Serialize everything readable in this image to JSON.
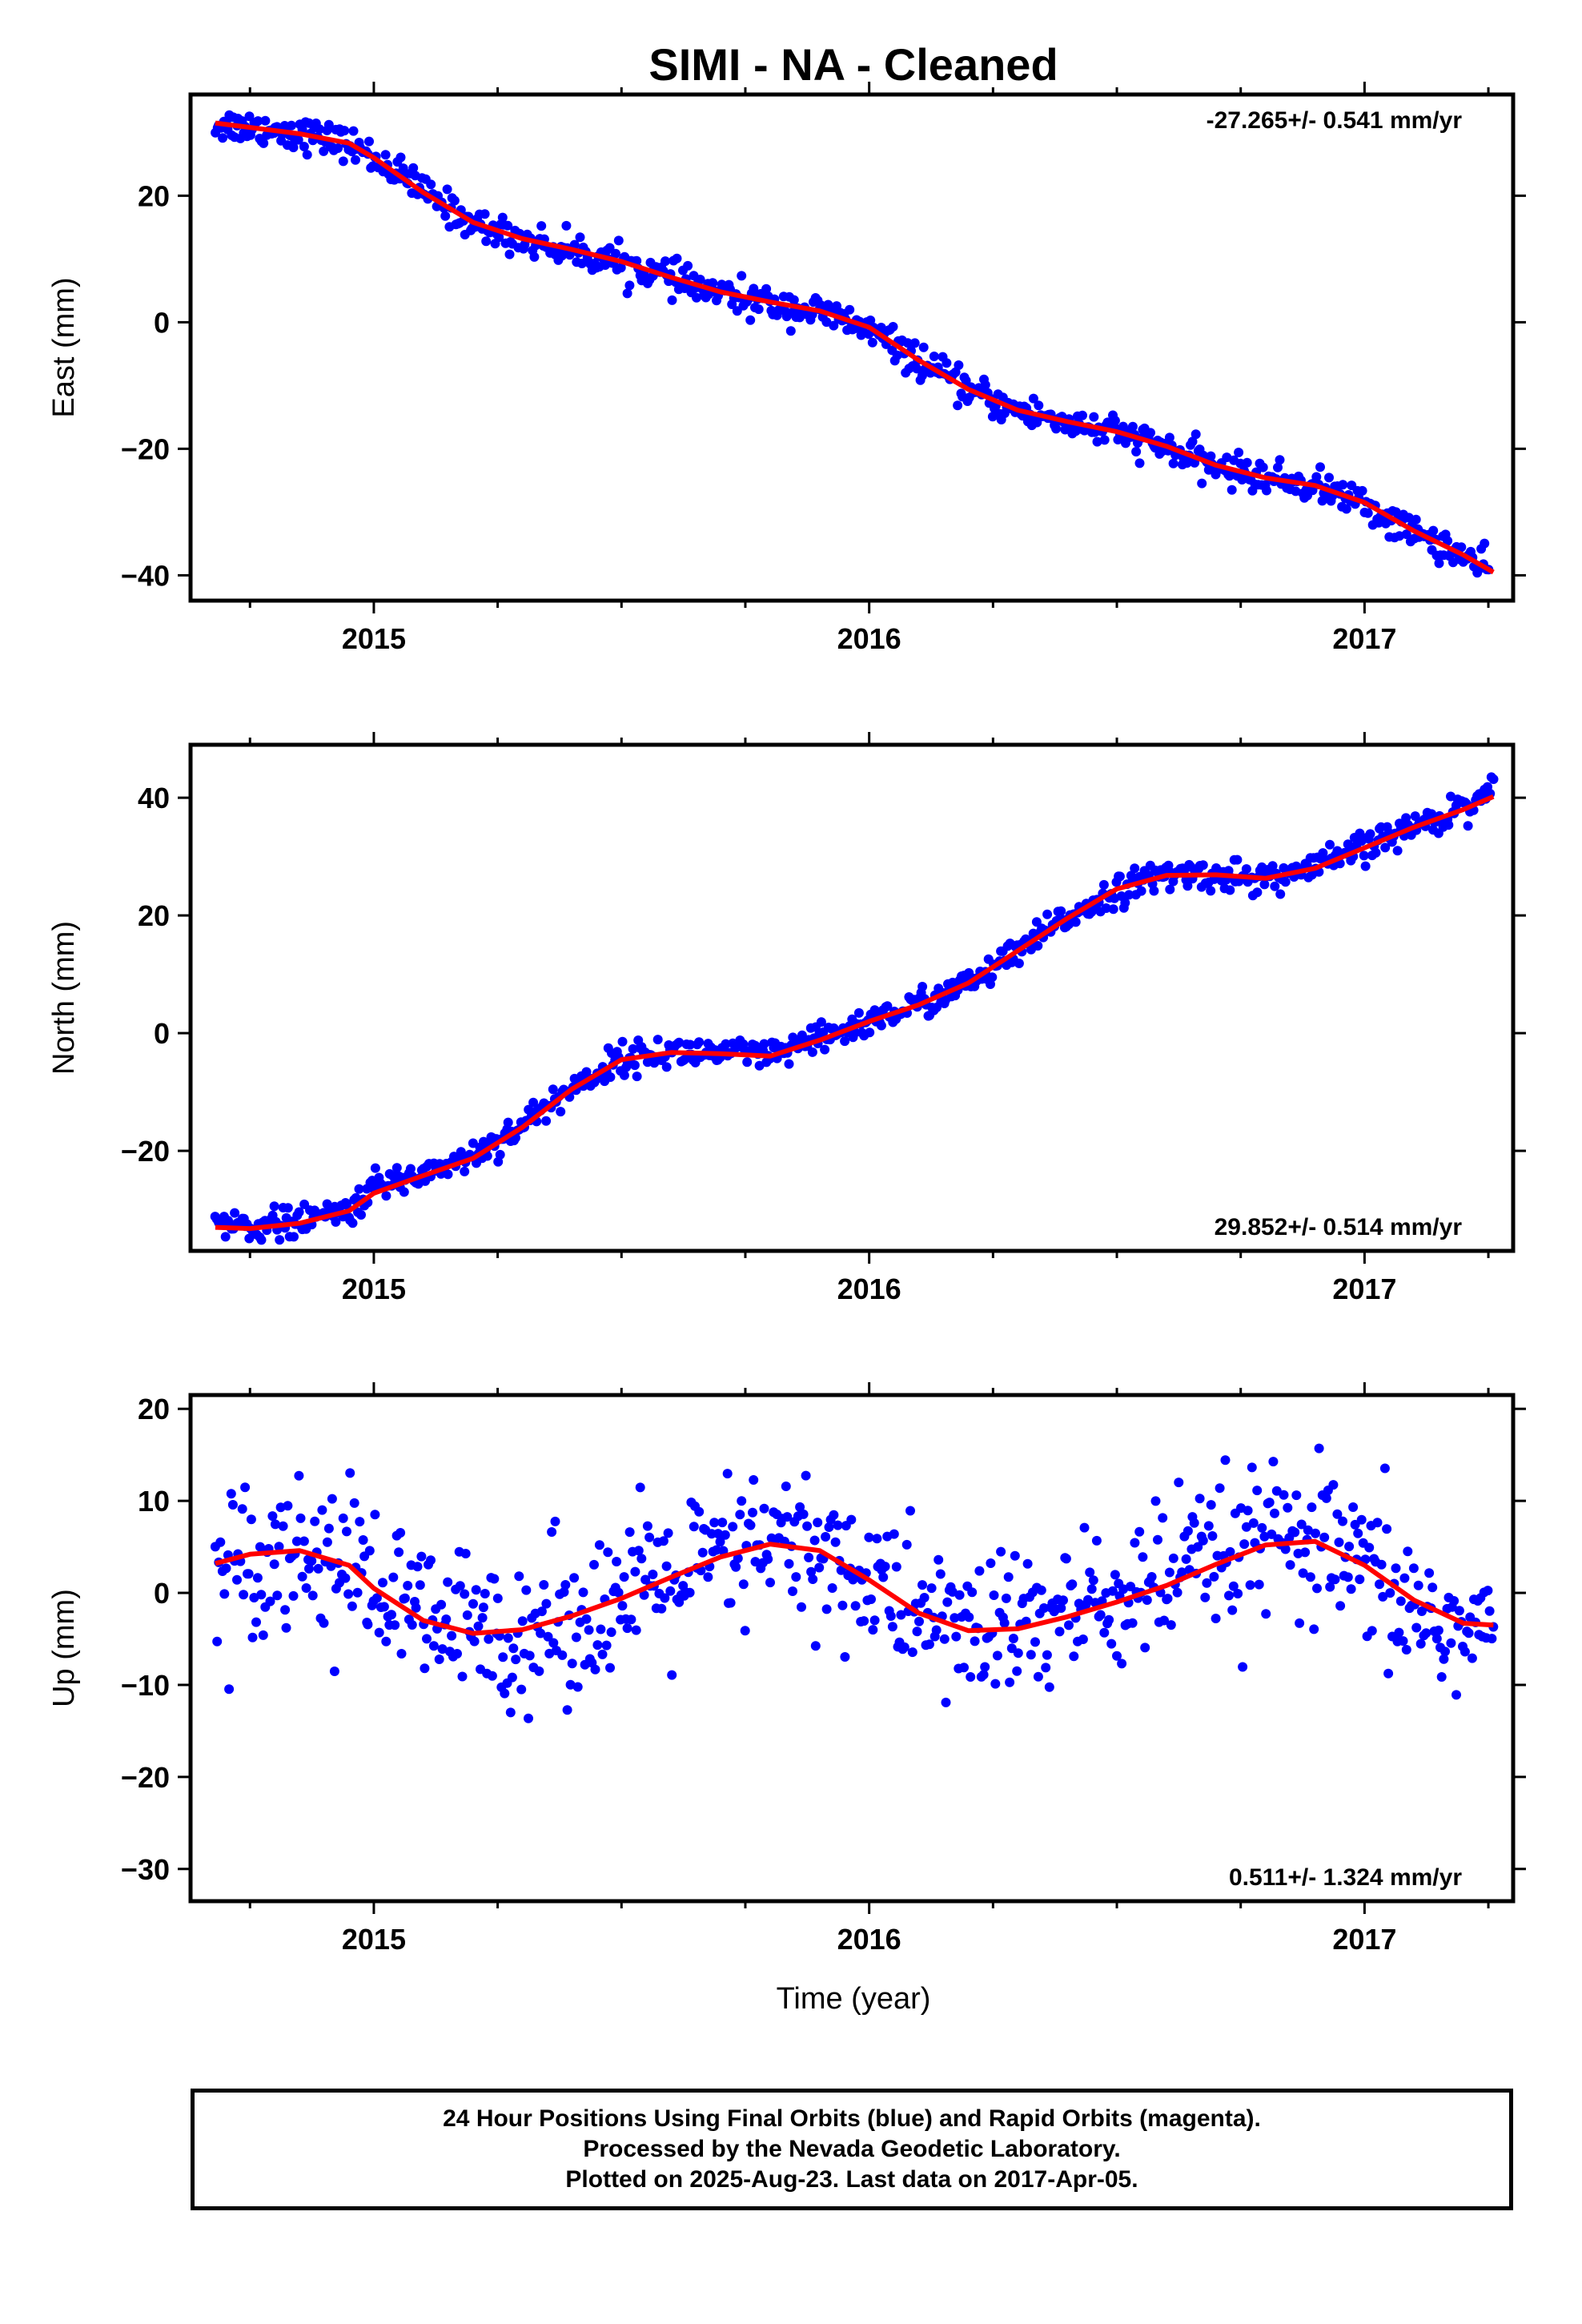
{
  "title": "SIMI  - NA - Cleaned",
  "xaxis": {
    "label": "Time (year)",
    "ticks": [
      2015,
      2016,
      2017
    ],
    "minor_ticks": [
      2014.75,
      2015.25,
      2015.5,
      2015.75,
      2016.25,
      2016.5,
      2016.75,
      2017.25
    ],
    "range": [
      2014.63,
      2017.3
    ]
  },
  "colors": {
    "data_points": "#0000ff",
    "model_line": "#ff0000",
    "frame": "#000000"
  },
  "footer": {
    "line1": "24 Hour Positions Using Final Orbits (blue) and Rapid Orbits (magenta).",
    "line2": "Processed by the Nevada Geodetic Laboratory.",
    "line3": "Plotted on 2025-Aug-23. Last data on 2017-Apr-05."
  },
  "chart_data": [
    {
      "type": "scatter",
      "ylabel": "East (mm)",
      "ylim": [
        -44,
        36
      ],
      "yticks": [
        -40,
        -20,
        0,
        20
      ],
      "rate_text": "-27.265+/- 0.541 mm/yr",
      "rate_position": "top-right",
      "series": [
        {
          "kind": "points",
          "x": [
            2014.68,
            2014.75,
            2014.85,
            2014.95,
            2015.0,
            2015.05,
            2015.1,
            2015.15,
            2015.2,
            2015.25,
            2015.35,
            2015.45,
            2015.55,
            2015.65,
            2015.75,
            2015.85,
            2015.95,
            2016.05,
            2016.15,
            2016.25,
            2016.35,
            2016.45,
            2016.55,
            2016.65,
            2016.75,
            2016.85,
            2016.95,
            2017.05,
            2017.15,
            2017.25
          ],
          "y": [
            31,
            31,
            30,
            28,
            26,
            24,
            21,
            18,
            15,
            14,
            12,
            10,
            8,
            5,
            3,
            2,
            0,
            -4,
            -9,
            -13,
            -15,
            -17,
            -19,
            -22,
            -24,
            -25,
            -27,
            -32,
            -35,
            -40
          ]
        },
        {
          "kind": "model",
          "x": [
            2014.68,
            2014.75,
            2014.85,
            2014.95,
            2015.0,
            2015.1,
            2015.2,
            2015.3,
            2015.4,
            2015.5,
            2015.6,
            2015.7,
            2015.8,
            2015.9,
            2016.0,
            2016.1,
            2016.2,
            2016.3,
            2016.4,
            2016.5,
            2016.6,
            2016.7,
            2016.8,
            2016.9,
            2017.0,
            2017.1,
            2017.2,
            2017.26
          ],
          "y": [
            31.5,
            30.8,
            29.8,
            28.3,
            26.0,
            20.5,
            15.8,
            13.2,
            11.5,
            9.6,
            7.1,
            4.8,
            3.2,
            1.8,
            -0.8,
            -6.0,
            -10.6,
            -13.9,
            -15.7,
            -17.3,
            -19.6,
            -22.6,
            -24.6,
            -25.8,
            -28.5,
            -33.0,
            -36.8,
            -39.5
          ]
        }
      ]
    },
    {
      "type": "scatter",
      "ylabel": "North (mm)",
      "ylim": [
        -37,
        49
      ],
      "yticks": [
        -20,
        0,
        20,
        40
      ],
      "rate_text": "29.852+/- 0.514 mm/yr",
      "rate_position": "bottom-right",
      "series": [
        {
          "kind": "points",
          "x": [
            2014.68,
            2014.75,
            2014.85,
            2014.95,
            2015.0,
            2015.1,
            2015.2,
            2015.3,
            2015.4,
            2015.5,
            2015.6,
            2015.7,
            2015.8,
            2015.9,
            2016.0,
            2016.1,
            2016.2,
            2016.3,
            2016.4,
            2016.5,
            2016.6,
            2016.7,
            2016.8,
            2016.9,
            2017.0,
            2017.1,
            2017.2,
            2017.26
          ],
          "y": [
            -31,
            -32,
            -32,
            -30,
            -25,
            -23,
            -20,
            -15,
            -9,
            -4,
            -3,
            -3,
            -4,
            -1,
            2,
            5,
            8,
            13,
            20,
            24,
            27,
            27,
            26,
            28,
            32,
            35,
            39,
            44
          ]
        },
        {
          "kind": "model",
          "x": [
            2014.68,
            2014.75,
            2014.85,
            2014.95,
            2015.0,
            2015.1,
            2015.2,
            2015.3,
            2015.4,
            2015.5,
            2015.6,
            2015.7,
            2015.8,
            2015.9,
            2016.0,
            2016.1,
            2016.2,
            2016.3,
            2016.4,
            2016.5,
            2016.6,
            2016.7,
            2016.8,
            2016.9,
            2017.0,
            2017.1,
            2017.2,
            2017.26
          ],
          "y": [
            -33.0,
            -33.2,
            -32.3,
            -30.2,
            -27.2,
            -24.2,
            -21.3,
            -16.0,
            -9.5,
            -4.5,
            -3.3,
            -3.5,
            -3.9,
            -1.2,
            2.0,
            4.8,
            8.5,
            14.0,
            19.5,
            24.5,
            26.8,
            26.9,
            26.3,
            28.0,
            31.5,
            35.0,
            38.0,
            40.2
          ]
        }
      ]
    },
    {
      "type": "scatter",
      "ylabel": "Up (mm)",
      "ylim": [
        -33.5,
        21.5
      ],
      "yticks": [
        -30,
        -20,
        -10,
        0,
        10,
        20
      ],
      "rate_text": "0.511+/- 1.324 mm/yr",
      "rate_position": "bottom-right",
      "series": [
        {
          "kind": "points",
          "x": [
            2014.68,
            2014.75,
            2014.85,
            2014.95,
            2015.0,
            2015.1,
            2015.2,
            2015.3,
            2015.4,
            2015.5,
            2015.6,
            2015.7,
            2015.8,
            2015.9,
            2016.0,
            2016.1,
            2016.2,
            2016.3,
            2016.4,
            2016.5,
            2016.6,
            2016.7,
            2016.8,
            2016.9,
            2017.0,
            2017.1,
            2017.2,
            2017.26
          ],
          "y": [
            3,
            4,
            5,
            4,
            1,
            -3,
            -4,
            -4,
            -3,
            -1,
            1,
            3,
            5,
            4,
            1,
            -2,
            -4,
            -3,
            -2,
            0,
            2,
            4,
            6,
            4,
            0,
            -3,
            -6,
            -5
          ]
        },
        {
          "kind": "model",
          "x": [
            2014.68,
            2014.75,
            2014.85,
            2014.95,
            2015.0,
            2015.1,
            2015.2,
            2015.3,
            2015.4,
            2015.5,
            2015.6,
            2015.7,
            2015.8,
            2015.9,
            2016.0,
            2016.1,
            2016.2,
            2016.3,
            2016.4,
            2016.5,
            2016.6,
            2016.7,
            2016.8,
            2016.9,
            2017.0,
            2017.1,
            2017.2,
            2017.26
          ],
          "y": [
            3.2,
            4.2,
            4.6,
            3.0,
            0.5,
            -3.0,
            -4.4,
            -4.0,
            -2.5,
            -0.6,
            1.7,
            3.9,
            5.3,
            4.6,
            1.4,
            -2.2,
            -4.1,
            -3.9,
            -2.6,
            -1.0,
            0.8,
            3.1,
            5.2,
            5.6,
            3.0,
            -0.8,
            -3.3,
            -3.5
          ]
        }
      ]
    }
  ]
}
